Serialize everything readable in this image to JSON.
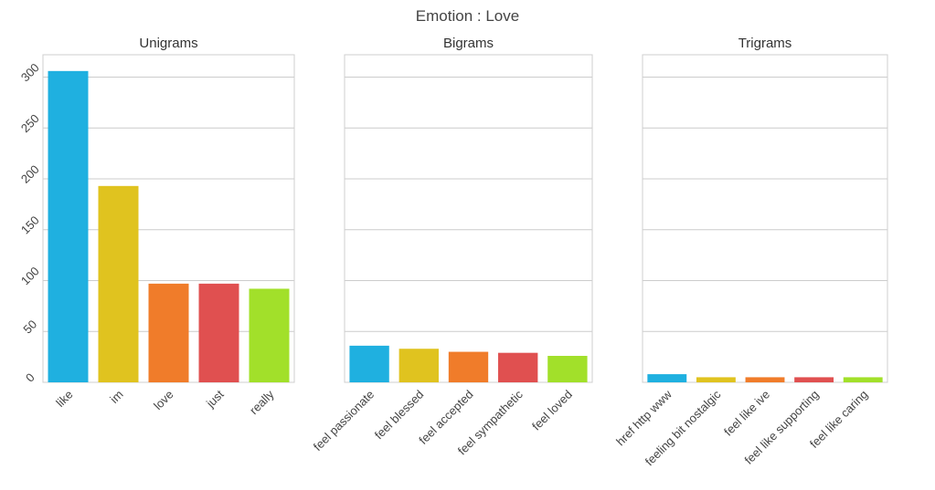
{
  "figure_title": "Emotion : Love",
  "chart_data": [
    {
      "type": "bar",
      "title": "Unigrams",
      "categories": [
        "like",
        "im",
        "love",
        "just",
        "really"
      ],
      "values": [
        306,
        193,
        97,
        97,
        92
      ],
      "colors": [
        "#1fb0e0",
        "#e0c31f",
        "#f07c2a",
        "#e05050",
        "#a2e02a"
      ],
      "ylim": [
        0,
        322
      ],
      "yticks": [
        0,
        50,
        100,
        150,
        200,
        250,
        300
      ],
      "grid": true,
      "xlabel": "",
      "ylabel": ""
    },
    {
      "type": "bar",
      "title": "Bigrams",
      "categories": [
        "feel passionate",
        "feel blessed",
        "feel accepted",
        "feel sympathetic",
        "feel loved"
      ],
      "values": [
        36,
        33,
        30,
        29,
        26
      ],
      "colors": [
        "#1fb0e0",
        "#e0c31f",
        "#f07c2a",
        "#e05050",
        "#a2e02a"
      ],
      "ylim": [
        0,
        322
      ],
      "yticks": [
        0,
        50,
        100,
        150,
        200,
        250,
        300
      ],
      "grid": true,
      "xlabel": "",
      "ylabel": ""
    },
    {
      "type": "bar",
      "title": "Trigrams",
      "categories": [
        "href http www",
        "feeling bit nostalgic",
        "feel like ive",
        "feel like supporting",
        "feel like caring"
      ],
      "values": [
        8,
        5,
        5,
        5,
        5
      ],
      "colors": [
        "#1fb0e0",
        "#e0c31f",
        "#f07c2a",
        "#e05050",
        "#a2e02a"
      ],
      "ylim": [
        0,
        322
      ],
      "yticks": [
        0,
        50,
        100,
        150,
        200,
        250,
        300
      ],
      "grid": true,
      "xlabel": "",
      "ylabel": ""
    }
  ]
}
